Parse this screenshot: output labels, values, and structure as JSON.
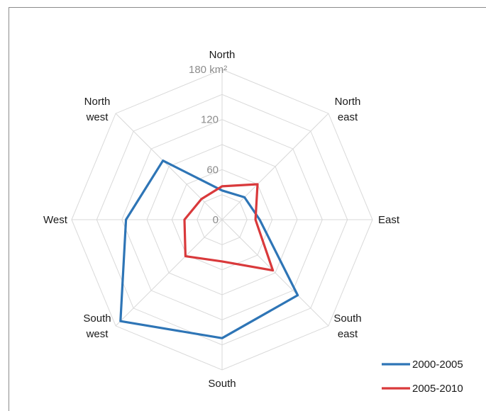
{
  "chart_data": {
    "type": "radar",
    "categories": [
      "North",
      "North east",
      "East",
      "South east",
      "South",
      "South west",
      "West",
      "North west"
    ],
    "category_lines": [
      [
        "North"
      ],
      [
        "North",
        "east"
      ],
      [
        "East"
      ],
      [
        "South",
        "east"
      ],
      [
        "South"
      ],
      [
        "South",
        "west"
      ],
      [
        "West"
      ],
      [
        "North",
        "west"
      ]
    ],
    "r_ticks": [
      "0",
      "60",
      "120",
      "180 km²"
    ],
    "r_range": [
      0,
      180
    ],
    "grid": true,
    "legend_position": "bottom-right",
    "series": [
      {
        "name": "2000-2005",
        "color": "#2e75b6",
        "values": [
          35,
          38,
          45,
          128,
          142,
          172,
          115,
          100
        ]
      },
      {
        "name": "2005-2010",
        "color": "#d9393b",
        "values": [
          40,
          60,
          40,
          86,
          50,
          62,
          45,
          35
        ]
      }
    ]
  }
}
